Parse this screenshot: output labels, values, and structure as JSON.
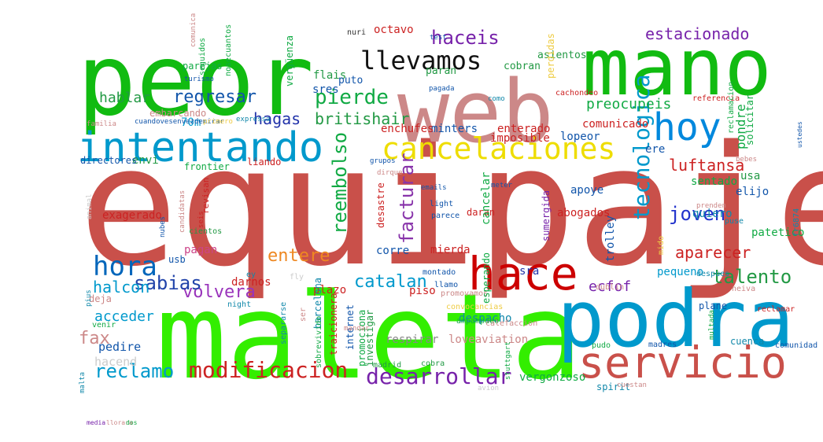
{
  "words": [
    {
      "t": "equipaje",
      "c": "#c9504a"
    },
    {
      "t": "maleta",
      "c": "#33ee00"
    },
    {
      "t": "peor",
      "c": "#11bb11"
    },
    {
      "t": "web",
      "c": "#cc8888"
    },
    {
      "t": "mano",
      "c": "#11bb11"
    },
    {
      "t": "podra",
      "c": "#0099cc"
    },
    {
      "t": "intentando",
      "c": "#0099cc"
    },
    {
      "t": "hace",
      "c": "#cc0000"
    },
    {
      "t": "servicio",
      "c": "#c9504a"
    },
    {
      "t": "hoy",
      "c": "#0088dd"
    },
    {
      "t": "cancelaciones",
      "c": "#eedd00"
    },
    {
      "t": "llevamos",
      "c": "#111111"
    },
    {
      "t": "modificacion",
      "c": "#cc2222"
    },
    {
      "t": "desarrollar",
      "c": "#7722aa"
    },
    {
      "t": "hora",
      "c": "#0066bb"
    },
    {
      "t": "tecnologica",
      "c": "#0099cc"
    },
    {
      "t": "haceis",
      "c": "#7722aa"
    },
    {
      "t": "regresar",
      "c": "#1155aa"
    },
    {
      "t": "pierde",
      "c": "#11aa44"
    },
    {
      "t": "joven",
      "c": "#2233cc"
    },
    {
      "t": "volvera",
      "c": "#9933bb"
    },
    {
      "t": "entere",
      "c": "#ee8822"
    },
    {
      "t": "reclamo",
      "c": "#0099cc"
    },
    {
      "t": "sabias",
      "c": "#2244aa"
    },
    {
      "t": "talento",
      "c": "#229944"
    },
    {
      "t": "facturar",
      "c": "#8833aa"
    },
    {
      "t": "estacionado",
      "c": "#7722aa"
    },
    {
      "t": "reembolso",
      "c": "#11aa44"
    },
    {
      "t": "catalan",
      "c": "#0099cc"
    },
    {
      "t": "aparecer",
      "c": "#cc2222"
    },
    {
      "t": "britishair",
      "c": "#229944"
    },
    {
      "t": "luftansa",
      "c": "#cc2222"
    },
    {
      "t": "hagas",
      "c": "#2233aa"
    },
    {
      "t": "pondre",
      "c": "#11aa44"
    },
    {
      "t": "ecfof",
      "c": "#7722aa"
    },
    {
      "t": "preocupeis",
      "c": "#11aa44"
    },
    {
      "t": "acceder",
      "c": "#0099cc"
    },
    {
      "t": "halcon",
      "c": "#0099cc"
    },
    {
      "t": "hablar",
      "c": "#229944"
    },
    {
      "t": "fax",
      "c": "#cc8888"
    },
    {
      "t": "pedire",
      "c": "#1155aa"
    },
    {
      "t": "hacend",
      "c": "#cccccc"
    },
    {
      "t": "vergonzoso",
      "c": "#11aa44"
    },
    {
      "t": "spirit",
      "c": "#1188aa"
    },
    {
      "t": "respirar",
      "c": "#888888"
    },
    {
      "t": "loveaviation",
      "c": "#cc8888"
    },
    {
      "t": "despacho",
      "c": "#1188aa"
    },
    {
      "t": "piso",
      "c": "#cc2222"
    },
    {
      "t": "plazo",
      "c": "#cc2222"
    },
    {
      "t": "corre",
      "c": "#1155aa"
    },
    {
      "t": "mierda",
      "c": "#cc2222"
    },
    {
      "t": "darnos",
      "c": "#cc2222"
    },
    {
      "t": "pagan",
      "c": "#cc4488"
    },
    {
      "t": "exagerado",
      "c": "#cc2222"
    },
    {
      "t": "apoye",
      "c": "#1155aa"
    },
    {
      "t": "abogados",
      "c": "#cc2222"
    },
    {
      "t": "elijo",
      "c": "#1155aa"
    },
    {
      "t": "quiero",
      "c": "#1188aa"
    },
    {
      "t": "patetico",
      "c": "#11aa44"
    },
    {
      "t": "pequeno",
      "c": "#0099cc"
    },
    {
      "t": "sra",
      "c": "#2233aa"
    },
    {
      "t": "trolley",
      "c": "#1155aa"
    },
    {
      "t": "comunicado",
      "c": "#cc2222"
    },
    {
      "t": "ere",
      "c": "#1155aa"
    },
    {
      "t": "sentado",
      "c": "#11aa44"
    },
    {
      "t": "lopeor",
      "c": "#1155aa"
    },
    {
      "t": "enterado",
      "c": "#cc2222"
    },
    {
      "t": "imposible",
      "c": "#cc2222"
    },
    {
      "t": "minters",
      "c": "#1155aa"
    },
    {
      "t": "enchufes",
      "c": "#cc2222"
    },
    {
      "t": "70m",
      "c": "#0099cc"
    },
    {
      "t": "envi",
      "c": "#229944"
    },
    {
      "t": "frontier",
      "c": "#11aa44"
    },
    {
      "t": "liando",
      "c": "#cc2222"
    },
    {
      "t": "embarcando",
      "c": "#cc8888"
    },
    {
      "t": "directores",
      "c": "#1155aa"
    },
    {
      "t": "sres",
      "c": "#1155aa"
    },
    {
      "t": "flais",
      "c": "#229944"
    },
    {
      "t": "octavo",
      "c": "#cc2222"
    },
    {
      "t": "asientos",
      "c": "#229944"
    },
    {
      "t": "cobran",
      "c": "#229944"
    },
    {
      "t": "paran",
      "c": "#229944"
    },
    {
      "t": "puto",
      "c": "#1155aa"
    },
    {
      "t": "parejas",
      "c": "#11aa44"
    },
    {
      "t": "nuri",
      "c": "#333333"
    },
    {
      "t": "deja",
      "c": "#cc8888"
    },
    {
      "t": "usb",
      "c": "#1155aa"
    },
    {
      "t": "cientos",
      "c": "#229944"
    },
    {
      "t": "revisan",
      "c": "#cc2222"
    },
    {
      "t": "daran",
      "c": "#cc2222"
    },
    {
      "t": "light",
      "c": "#1155aa"
    },
    {
      "t": "parece",
      "c": "#1155aa"
    },
    {
      "t": "madrid",
      "c": "#229944"
    },
    {
      "t": "cobra",
      "c": "#229944"
    },
    {
      "t": "cuenca",
      "c": "#1188aa"
    },
    {
      "t": "plane",
      "c": "#1155aa"
    },
    {
      "t": "madres",
      "c": "#1155aa"
    },
    {
      "t": "pudo",
      "c": "#11aa44"
    },
    {
      "t": "comunidad",
      "c": "#1155aa"
    },
    {
      "t": "montado",
      "c": "#1155aa"
    },
    {
      "t": "llamo",
      "c": "#1155aa"
    },
    {
      "t": "despues",
      "c": "#1188aa"
    },
    {
      "t": "reclamar",
      "c": "#cc2222"
    },
    {
      "t": "avion",
      "c": "#cccccc"
    },
    {
      "t": "cuestan",
      "c": "#cc8888"
    },
    {
      "t": "dublin",
      "c": "#cc8888"
    },
    {
      "t": "promovamos",
      "c": "#cc8888"
    },
    {
      "t": "convocancias",
      "c": "#eecc44"
    },
    {
      "t": "ey",
      "c": "#1188aa"
    },
    {
      "t": "night",
      "c": "#1188aa"
    },
    {
      "t": "fly",
      "c": "#cccccc"
    },
    {
      "t": "ampampdeo",
      "c": "#11aa44"
    },
    {
      "t": "calefaccion",
      "c": "#cc8888"
    },
    {
      "t": "venir",
      "c": "#11aa44"
    },
    {
      "t": "malta",
      "c": "#1188aa"
    },
    {
      "t": "neiva",
      "c": "#cc8888"
    },
    {
      "t": "fr6874",
      "c": "#1188aa"
    },
    {
      "t": "puse",
      "c": "#1188aa"
    },
    {
      "t": "prenden",
      "c": "#cc8888"
    },
    {
      "t": "emails",
      "c": "#1155aa"
    },
    {
      "t": "meter",
      "c": "#1155aa"
    },
    {
      "t": "grupos",
      "c": "#1155aa"
    },
    {
      "t": "bebes",
      "c": "#cc8888"
    },
    {
      "t": "dirque",
      "c": "#cc8888"
    },
    {
      "t": "usa",
      "c": "#229944"
    },
    {
      "t": "familia",
      "c": "#cc8888"
    },
    {
      "t": "cuandovesenvezdemirar",
      "c": "#1155aa"
    },
    {
      "t": "primero",
      "c": "#eecc44"
    },
    {
      "t": "expressa",
      "c": "#1188aa"
    },
    {
      "t": "referencia",
      "c": "#cc2222"
    },
    {
      "t": "cachondeo",
      "c": "#cc2222"
    },
    {
      "t": "como",
      "c": "#1188aa"
    },
    {
      "t": "pagada",
      "c": "#1155aa"
    },
    {
      "t": "test",
      "c": "#1155aa"
    },
    {
      "t": "comunica",
      "c": "#cc8888"
    },
    {
      "t": "turismo",
      "c": "#1155aa"
    },
    {
      "t": "nubes",
      "c": "#1155aa"
    },
    {
      "t": "seis",
      "c": "#cc2222"
    },
    {
      "t": "animal",
      "c": "#cccccc"
    },
    {
      "t": "pius",
      "c": "#1188aa"
    },
    {
      "t": "vergüenza",
      "c": "#11aa44"
    },
    {
      "t": "nosecuantos",
      "c": "#11aa44"
    },
    {
      "t": "seguidos",
      "c": "#11aa44"
    },
    {
      "t": "perdidas",
      "c": "#eecc44"
    },
    {
      "t": "solicitar",
      "c": "#11aa44"
    },
    {
      "t": "reclamacion",
      "c": "#11aa44"
    },
    {
      "t": "ustedes",
      "c": "#1155aa"
    },
    {
      "t": "desastre",
      "c": "#cc2222"
    },
    {
      "t": "cancelar",
      "c": "#11aa44"
    },
    {
      "t": "sumergida",
      "c": "#7722aa"
    },
    {
      "t": "mido",
      "c": "#eecc44"
    },
    {
      "t": "traicionera",
      "c": "#cc2222"
    },
    {
      "t": "investigar",
      "c": "#229944"
    },
    {
      "t": "promociona",
      "c": "#11aa44"
    },
    {
      "t": "internet",
      "c": "#1155aa"
    },
    {
      "t": "esperando",
      "c": "#11aa44"
    },
    {
      "t": "barcelona",
      "c": "#1188aa"
    },
    {
      "t": "separarse",
      "c": "#1188aa"
    },
    {
      "t": "sobrevivido",
      "c": "#11aa44"
    },
    {
      "t": "ser",
      "c": "#cc8888"
    },
    {
      "t": "stuttgart",
      "c": "#11aa44"
    },
    {
      "t": "multada",
      "c": "#11aa44"
    },
    {
      "t": "mandar",
      "c": "#cc8888"
    },
    {
      "t": "candidatas",
      "c": "#cc8888"
    },
    {
      "t": "media",
      "c": "#7722aa"
    },
    {
      "t": "llorara",
      "c": "#cc8888"
    },
    {
      "t": "dos",
      "c": "#11aa44"
    }
  ]
}
